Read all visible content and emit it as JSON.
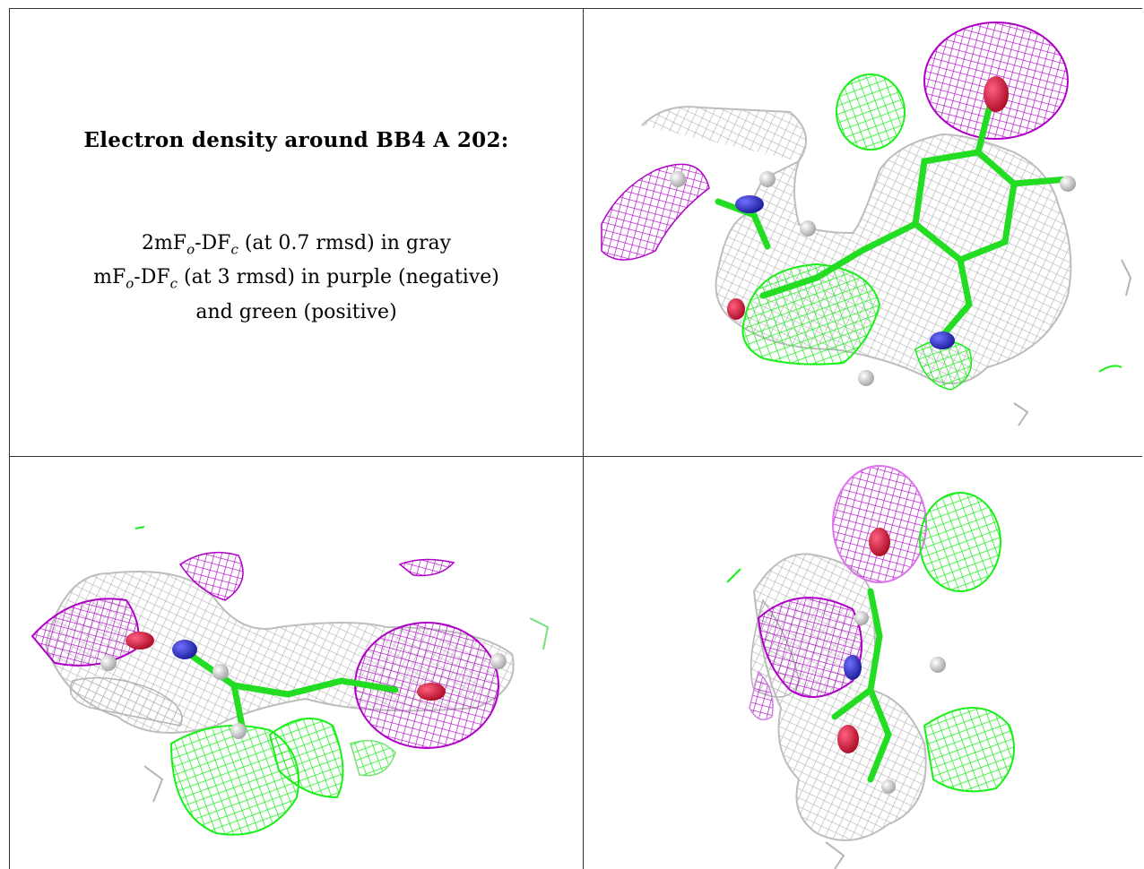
{
  "caption": {
    "title": "Electron density around BB4 A 202:",
    "line1": {
      "pre": "2mF",
      "s1": "o",
      "mid": "-DF",
      "s2": "c",
      "post": " (at 0.7 rmsd) in gray"
    },
    "line2": {
      "pre": "mF",
      "s1": "o",
      "mid": "-DF",
      "s2": "c",
      "post": " (at 3 rmsd) in purple (negative)"
    },
    "line3": "and green (positive)"
  },
  "colors": {
    "gray_mesh": "#b4b4b4",
    "negative_mesh": "#b000c8",
    "positive_mesh": "#18f018",
    "oxygen": "#e0204a",
    "nitrogen": "#3a3ad0",
    "hydrogen": "#f2f2f2",
    "border": "#333333"
  },
  "panels": [
    {
      "name": "view-1",
      "description_icon": "density-mesh-icon"
    },
    {
      "name": "view-2",
      "description_icon": "density-mesh-icon"
    },
    {
      "name": "view-3",
      "description_icon": "density-mesh-icon"
    }
  ]
}
